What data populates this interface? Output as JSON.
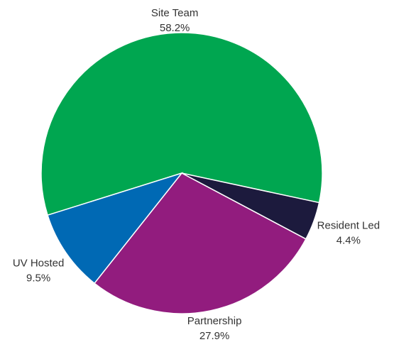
{
  "chart_data": {
    "type": "pie",
    "categories": [
      "Site Team",
      "Resident Led",
      "Partnership",
      "UV Hosted"
    ],
    "values": [
      58.2,
      4.4,
      27.9,
      9.5
    ],
    "value_labels": [
      "58.2%",
      "4.4%",
      "27.9%",
      "9.5%"
    ],
    "colors": [
      "#00a650",
      "#1c1a3d",
      "#921c7e",
      "#0069b4"
    ]
  }
}
